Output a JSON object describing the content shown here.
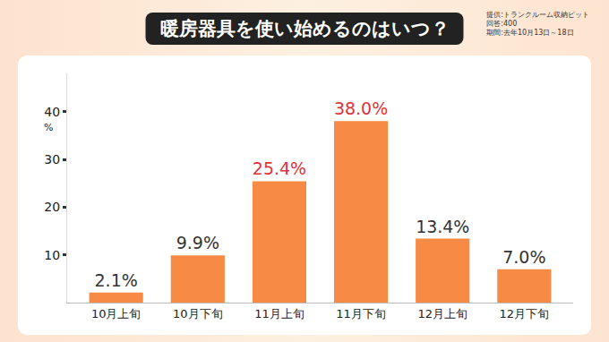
{
  "chart_data": {
    "type": "bar",
    "title": "暖房器具を使い始めるのはいつ？",
    "source": [
      "提供:トランクルーム収納ピット",
      "回答:400",
      "期間:去年10月13日～18日"
    ],
    "categories": [
      "10月上旬",
      "10月下旬",
      "11月上旬",
      "11月下旬",
      "12月上旬",
      "12月下旬"
    ],
    "values": [
      2.1,
      9.9,
      25.4,
      38.0,
      13.4,
      7.0
    ],
    "value_labels": [
      "2.1%",
      "9.9%",
      "25.4%",
      "38.0%",
      "13.4%",
      "7.0%"
    ],
    "color": "#f78a45",
    "ylabel": "%",
    "ylim": [
      0,
      48
    ],
    "yticks": [
      10,
      20,
      30,
      40
    ],
    "grid": false,
    "data_labels": true
  }
}
